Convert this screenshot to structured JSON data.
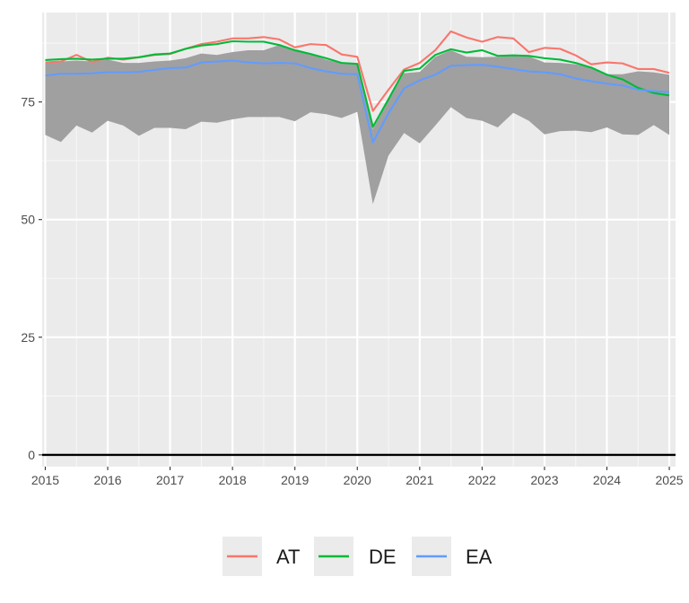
{
  "chart_data": {
    "type": "line",
    "title": "",
    "xlabel": "",
    "ylabel": "",
    "xlim": [
      2014.95,
      2025.1
    ],
    "ylim": [
      -2.5,
      94
    ],
    "x_ticks": [
      2015,
      2016,
      2017,
      2018,
      2019,
      2020,
      2021,
      2022,
      2023,
      2024,
      2025
    ],
    "x_tick_labels": [
      "2015",
      "2016",
      "2017",
      "2018",
      "2019",
      "2020",
      "2021",
      "2022",
      "2023",
      "2024",
      "2025"
    ],
    "y_ticks": [
      0,
      25,
      50,
      75
    ],
    "y_tick_labels": [
      "0",
      "25",
      "50",
      "75"
    ],
    "grid": true,
    "legend_position": "bottom",
    "hline": 0,
    "band": {
      "color": "#a0a0a0",
      "x": [
        2015.0,
        2015.25,
        2015.5,
        2015.75,
        2016.0,
        2016.25,
        2016.5,
        2016.75,
        2017.0,
        2017.25,
        2017.5,
        2017.75,
        2018.0,
        2018.25,
        2018.5,
        2018.75,
        2019.0,
        2019.25,
        2019.5,
        2019.75,
        2020.0,
        2020.25,
        2020.5,
        2020.75,
        2021.0,
        2021.25,
        2021.5,
        2021.75,
        2022.0,
        2022.25,
        2022.5,
        2022.75,
        2023.0,
        2023.25,
        2023.5,
        2023.75,
        2024.0,
        2024.25,
        2024.5,
        2024.75,
        2025.0
      ],
      "lower": [
        68.0,
        66.5,
        70.0,
        68.5,
        71.0,
        70.0,
        67.8,
        69.5,
        69.5,
        69.2,
        70.8,
        70.6,
        71.3,
        71.8,
        71.8,
        71.8,
        70.9,
        72.8,
        72.4,
        71.6,
        72.9,
        53.3,
        63.6,
        68.4,
        66.2,
        70.0,
        73.9,
        71.6,
        71.0,
        69.6,
        72.7,
        71.0,
        68.1,
        68.8,
        68.9,
        68.6,
        69.6,
        68.1,
        68.0,
        70.1,
        68.0
      ],
      "upper": [
        83.2,
        83.6,
        83.8,
        83.6,
        84.0,
        83.3,
        83.3,
        83.6,
        83.8,
        84.3,
        85.3,
        85.0,
        85.6,
        86.0,
        86.0,
        87.1,
        85.9,
        85.2,
        84.0,
        83.2,
        83.2,
        69.2,
        75.3,
        81.1,
        81.4,
        84.6,
        86.0,
        84.6,
        84.5,
        84.6,
        84.7,
        84.7,
        83.4,
        83.3,
        83.0,
        82.3,
        80.9,
        80.9,
        81.5,
        81.3,
        80.8
      ]
    },
    "x": [
      2015.0,
      2015.25,
      2015.5,
      2015.75,
      2016.0,
      2016.25,
      2016.5,
      2016.75,
      2017.0,
      2017.25,
      2017.5,
      2017.75,
      2018.0,
      2018.25,
      2018.5,
      2018.75,
      2019.0,
      2019.25,
      2019.5,
      2019.75,
      2020.0,
      2020.25,
      2020.5,
      2020.75,
      2021.0,
      2021.25,
      2021.5,
      2021.75,
      2022.0,
      2022.25,
      2022.5,
      2022.75,
      2023.0,
      2023.25,
      2023.5,
      2023.75,
      2024.0,
      2024.25,
      2024.5,
      2024.75,
      2025.0
    ],
    "series": [
      {
        "name": "AT",
        "color": "#f8766d",
        "values": [
          83.4,
          83.6,
          85.0,
          83.5,
          84.4,
          84.0,
          84.5,
          85.0,
          85.2,
          86.3,
          87.3,
          87.8,
          88.5,
          88.5,
          88.8,
          88.3,
          86.6,
          87.3,
          87.1,
          85.1,
          84.6,
          73.1,
          77.6,
          81.9,
          83.3,
          86.0,
          90.0,
          88.7,
          87.8,
          88.8,
          88.5,
          85.6,
          86.5,
          86.3,
          84.9,
          83.0,
          83.4,
          83.2,
          82.0,
          82.0,
          81.2
        ]
      },
      {
        "name": "DE",
        "color": "#00ba38",
        "values": [
          83.9,
          84.1,
          84.2,
          84.0,
          84.2,
          84.2,
          84.5,
          85.1,
          85.3,
          86.3,
          87.0,
          87.3,
          87.9,
          87.8,
          87.8,
          87.1,
          86.0,
          85.2,
          84.3,
          83.3,
          83.1,
          69.7,
          75.6,
          81.6,
          82.1,
          85.0,
          86.2,
          85.5,
          86.0,
          84.8,
          84.9,
          84.8,
          84.3,
          84.0,
          83.3,
          82.3,
          80.8,
          79.8,
          78.0,
          76.9,
          76.4
        ]
      },
      {
        "name": "EA",
        "color": "#619cff",
        "values": [
          80.6,
          81.0,
          81.0,
          81.1,
          81.3,
          81.3,
          81.4,
          81.8,
          82.2,
          82.3,
          83.4,
          83.6,
          83.8,
          83.4,
          83.2,
          83.3,
          83.2,
          82.2,
          81.5,
          81.0,
          80.9,
          66.4,
          72.6,
          77.9,
          79.6,
          80.8,
          82.7,
          82.8,
          82.9,
          82.5,
          82.0,
          81.5,
          81.3,
          80.9,
          80.0,
          79.4,
          78.9,
          78.5,
          77.6,
          77.3,
          77.1
        ]
      }
    ]
  }
}
